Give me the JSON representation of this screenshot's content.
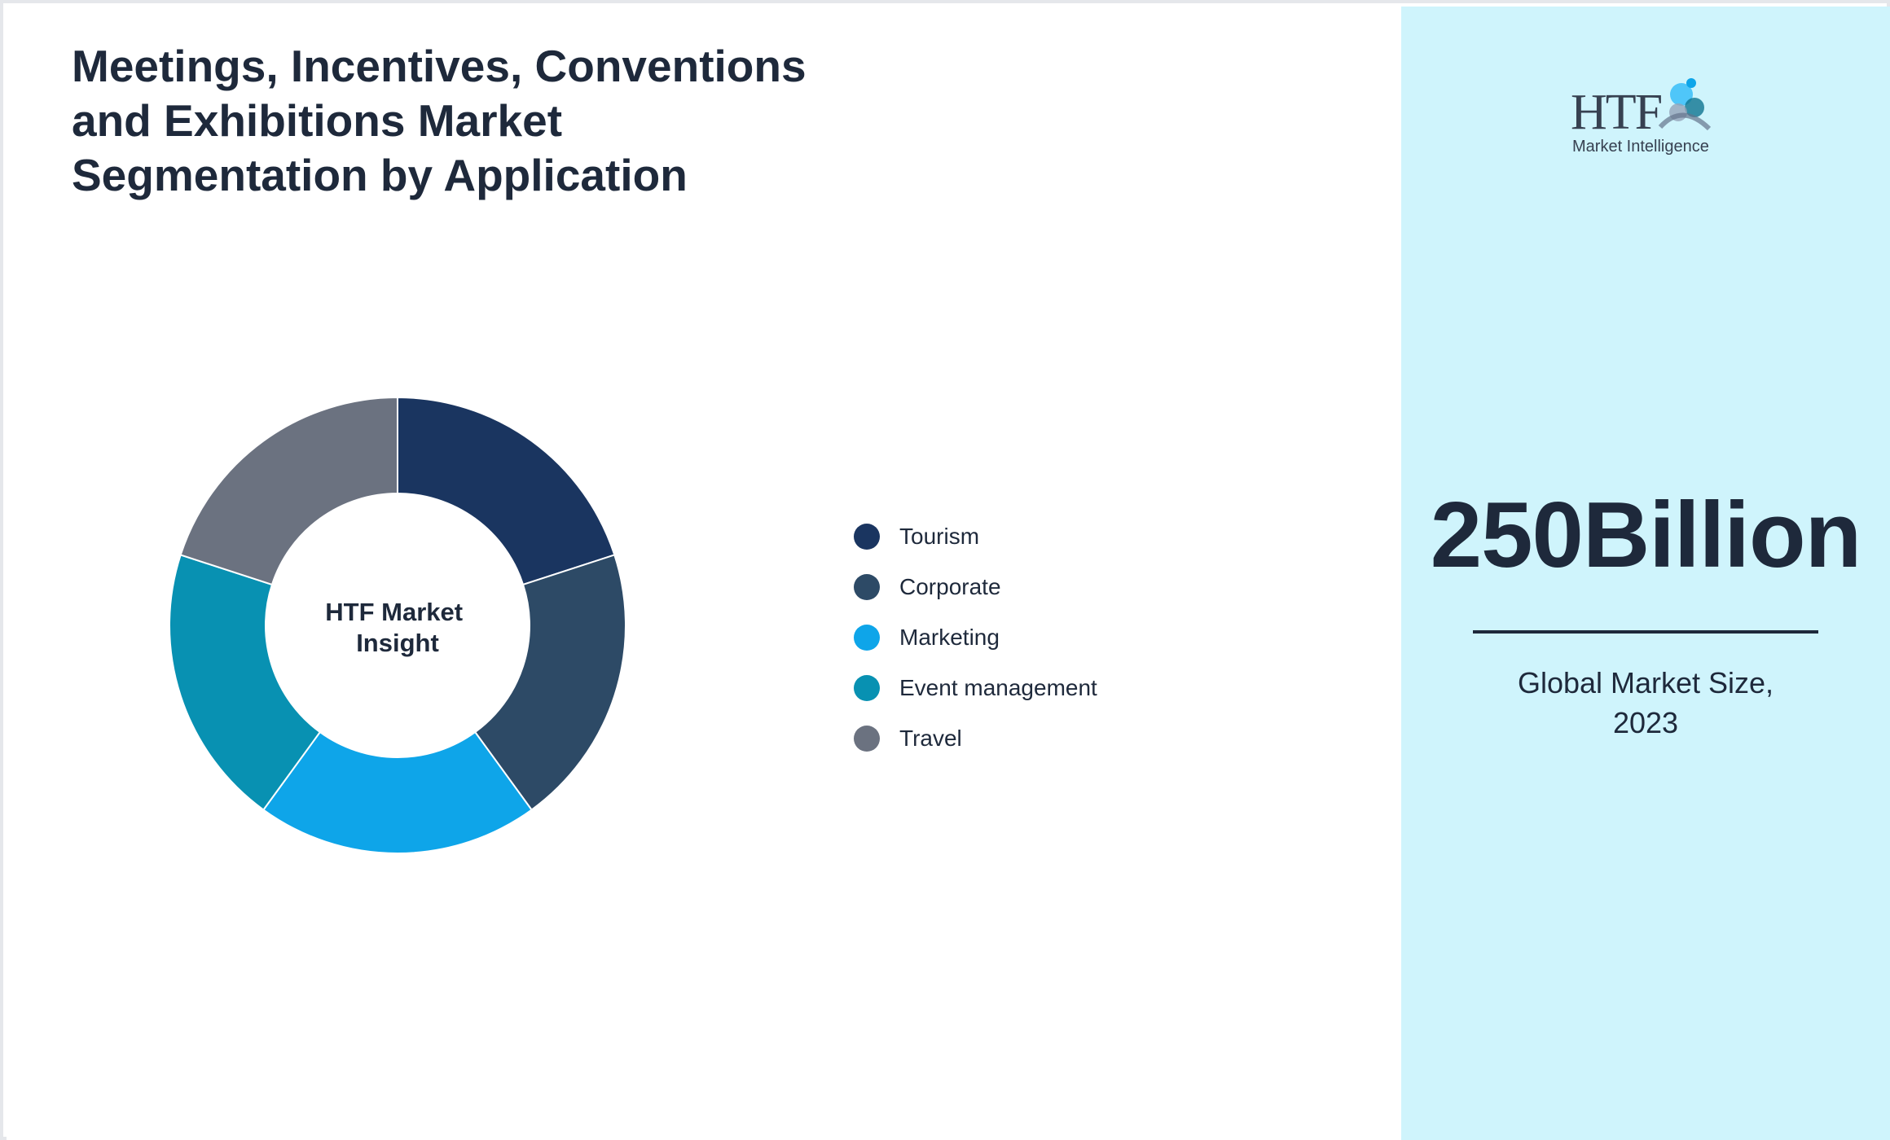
{
  "title": "Meetings, Incentives, Conventions and Exhibitions Market Segmentation by Application",
  "chart_data": {
    "type": "pie",
    "center_label": "HTF Market Insight",
    "categories": [
      "Tourism",
      "Corporate",
      "Marketing",
      "Event management",
      "Travel"
    ],
    "values": [
      20,
      20,
      20,
      20,
      20
    ],
    "colors": [
      "#1a3560",
      "#2d4a66",
      "#0ea5e9",
      "#0891b2",
      "#6b7280"
    ],
    "legend_position": "right"
  },
  "legend": [
    {
      "label": "Tourism",
      "color": "#1a3560"
    },
    {
      "label": "Corporate",
      "color": "#2d4a66"
    },
    {
      "label": "Marketing",
      "color": "#0ea5e9"
    },
    {
      "label": "Event management",
      "color": "#0891b2"
    },
    {
      "label": "Travel",
      "color": "#6b7280"
    }
  ],
  "logo": {
    "text_main": "HTF",
    "text_sub": "Market Intelligence"
  },
  "market_size": {
    "value": "250Billion",
    "caption": "Global Market Size,\n2023"
  },
  "colors": {
    "text": "#1e293b",
    "panel": "#cff4fc",
    "background": "#ffffff"
  }
}
